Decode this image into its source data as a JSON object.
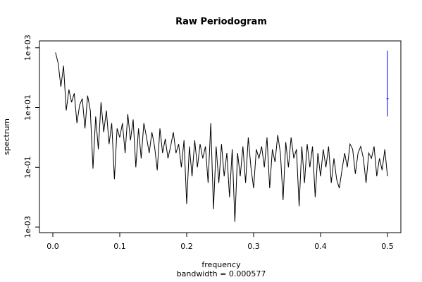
{
  "chart_data": {
    "type": "line",
    "title": "Raw Periodogram",
    "xlabel": "frequency",
    "ylabel": "spectrum",
    "note": "bandwidth = 0.000577",
    "log_y": true,
    "color": "#000000",
    "x": [
      0.004,
      0.008,
      0.012,
      0.016,
      0.02,
      0.024,
      0.028,
      0.032,
      0.036,
      0.04,
      0.044,
      0.048,
      0.052,
      0.056,
      0.06,
      0.064,
      0.068,
      0.072,
      0.076,
      0.08,
      0.084,
      0.088,
      0.092,
      0.096,
      0.1,
      0.104,
      0.108,
      0.112,
      0.116,
      0.12,
      0.124,
      0.128,
      0.132,
      0.136,
      0.14,
      0.144,
      0.148,
      0.152,
      0.156,
      0.16,
      0.164,
      0.168,
      0.172,
      0.176,
      0.18,
      0.184,
      0.188,
      0.192,
      0.196,
      0.2,
      0.204,
      0.208,
      0.212,
      0.216,
      0.22,
      0.224,
      0.228,
      0.232,
      0.236,
      0.24,
      0.244,
      0.248,
      0.252,
      0.256,
      0.26,
      0.264,
      0.268,
      0.272,
      0.276,
      0.28,
      0.284,
      0.288,
      0.292,
      0.296,
      0.3,
      0.304,
      0.308,
      0.312,
      0.316,
      0.32,
      0.324,
      0.328,
      0.332,
      0.336,
      0.34,
      0.344,
      0.348,
      0.352,
      0.356,
      0.36,
      0.364,
      0.368,
      0.372,
      0.376,
      0.38,
      0.384,
      0.388,
      0.392,
      0.396,
      0.4,
      0.404,
      0.408,
      0.412,
      0.416,
      0.42,
      0.424,
      0.428,
      0.432,
      0.436,
      0.44,
      0.444,
      0.448,
      0.452,
      0.456,
      0.46,
      0.464,
      0.468,
      0.472,
      0.476,
      0.48,
      0.484,
      0.488,
      0.492,
      0.496,
      0.5
    ],
    "values": [
      700,
      300,
      50,
      250,
      8,
      40,
      15,
      30,
      3,
      12,
      20,
      2,
      25,
      8,
      0.09,
      5,
      0.4,
      15,
      1.5,
      8,
      0.6,
      3,
      0.04,
      2,
      1,
      3,
      0.3,
      6,
      0.8,
      4,
      0.1,
      2,
      0.2,
      3,
      1,
      0.3,
      1.5,
      0.5,
      0.08,
      2,
      0.3,
      0.9,
      0.2,
      0.5,
      1.5,
      0.3,
      0.6,
      0.1,
      0.8,
      0.006,
      0.5,
      0.05,
      0.8,
      0.1,
      0.6,
      0.2,
      0.5,
      0.03,
      3,
      0.004,
      0.5,
      0.03,
      0.6,
      0.05,
      0.3,
      0.01,
      0.4,
      0.0015,
      0.3,
      0.05,
      0.5,
      0.03,
      1,
      0.1,
      0.02,
      0.4,
      0.2,
      0.5,
      0.1,
      1,
      0.02,
      0.4,
      0.15,
      1.2,
      0.3,
      0.008,
      0.7,
      0.1,
      1,
      0.2,
      0.4,
      0.005,
      0.5,
      0.03,
      0.6,
      0.1,
      0.5,
      0.01,
      0.3,
      0.05,
      0.4,
      0.1,
      0.5,
      0.03,
      0.2,
      0.04,
      0.02,
      0.08,
      0.3,
      0.1,
      0.6,
      0.4,
      0.06,
      0.3,
      0.5,
      0.2,
      0.03,
      0.3,
      0.2,
      0.5,
      0.05,
      0.2,
      0.08,
      0.4,
      0.05
    ],
    "ci_bar": {
      "x": 0.5,
      "lower": 5,
      "center": 20,
      "upper": 800,
      "color": "#0000ff"
    },
    "xlim": [
      -0.02,
      0.52
    ],
    "ylim": [
      0.00065,
      1700
    ],
    "xticks": [
      {
        "value": 0,
        "label": "0.0"
      },
      0.1,
      0.2,
      0.3,
      0.4,
      0.5
    ],
    "yticks": [
      {
        "value": 0.001,
        "label": "1e-03"
      },
      {
        "value": 0.1,
        "label": "1e-01"
      },
      {
        "value": 10,
        "label": "1e+01"
      },
      {
        "value": 1000,
        "label": "1e+03"
      }
    ]
  }
}
